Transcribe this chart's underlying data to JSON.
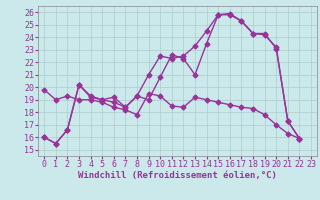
{
  "background_color": "#cbe8ea",
  "grid_color": "#aacccc",
  "line_color": "#993399",
  "marker": "D",
  "markersize": 2.5,
  "linewidth": 1.0,
  "xlabel": "Windchill (Refroidissement éolien,°C)",
  "xlabel_fontsize": 6.5,
  "tick_fontsize": 6.0,
  "xlim": [
    -0.5,
    23.5
  ],
  "ylim": [
    14.5,
    26.5
  ],
  "xticks": [
    0,
    1,
    2,
    3,
    4,
    5,
    6,
    7,
    8,
    9,
    10,
    11,
    12,
    13,
    14,
    15,
    16,
    17,
    18,
    19,
    20,
    21,
    22,
    23
  ],
  "yticks": [
    15,
    16,
    17,
    18,
    19,
    20,
    21,
    22,
    23,
    24,
    25,
    26
  ],
  "series": [
    [
      16.0,
      15.5,
      16.6,
      20.2,
      19.2,
      19.0,
      19.2,
      18.4,
      19.3,
      21.0,
      22.5,
      22.3,
      22.5,
      23.3,
      24.5,
      25.8,
      25.9,
      25.3,
      24.3,
      24.3,
      23.1,
      17.3,
      15.9
    ],
    [
      16.0,
      15.5,
      16.6,
      20.2,
      19.3,
      19.0,
      18.8,
      18.4,
      19.3,
      19.0,
      20.8,
      22.6,
      22.3,
      21.0,
      23.5,
      25.8,
      25.8,
      25.3,
      24.3,
      24.2,
      23.2,
      17.3,
      15.9
    ],
    [
      19.8,
      19.0,
      19.3,
      19.0,
      19.0,
      18.8,
      18.4,
      18.2,
      17.8,
      19.5,
      19.3,
      18.5,
      18.4,
      19.2,
      19.0,
      18.8,
      18.6,
      18.4,
      18.3,
      17.8,
      17.0,
      16.3,
      15.9
    ]
  ]
}
